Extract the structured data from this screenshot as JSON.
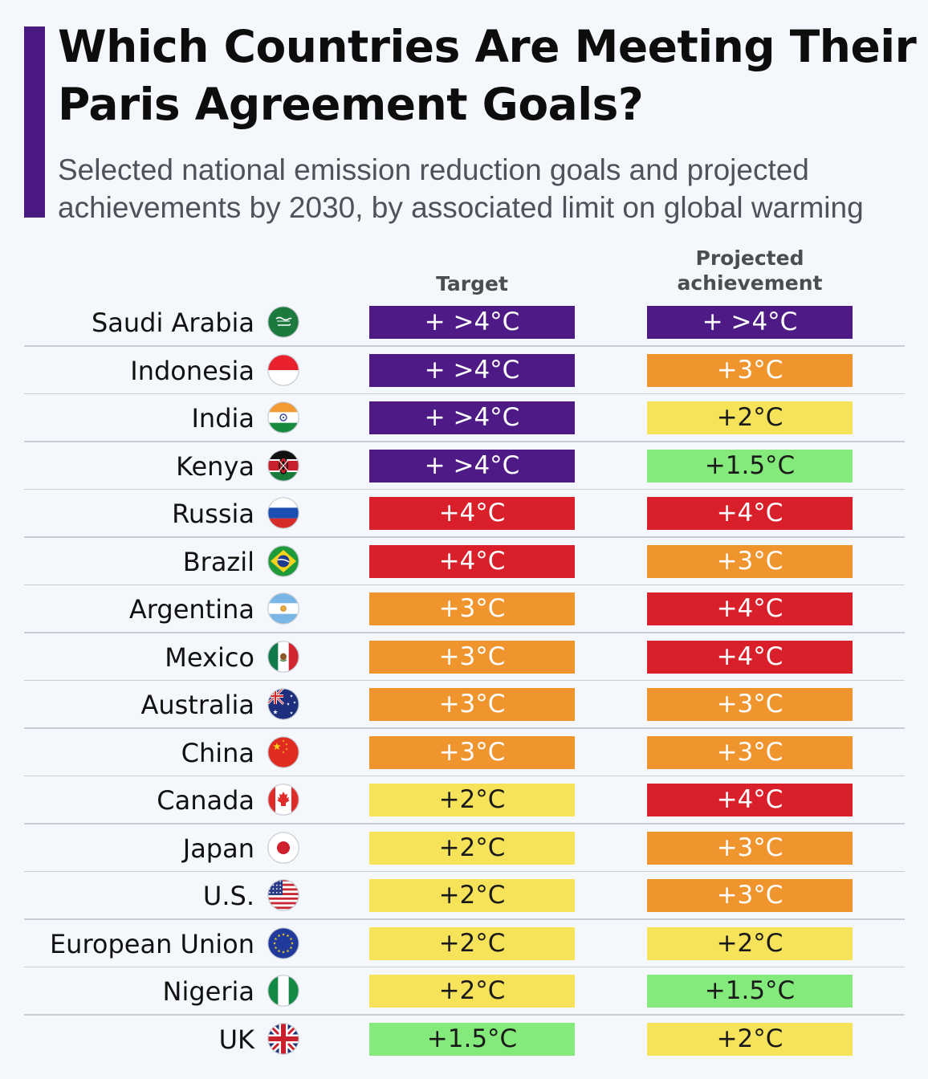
{
  "header": {
    "title": "Which Countries Are Meeting Their Paris Agreement Goals?",
    "subtitle": "Selected national emission reduction goals and projected achievements by 2030, by associated limit on global warming"
  },
  "columns": {
    "target": "Target",
    "projected": "Projected achievement"
  },
  "colors": {
    "accent": "#4a1a82",
    "scale": {
      "+ >4°C": {
        "bg": "#4e1a86",
        "fg": "#ffffff"
      },
      "+4°C": {
        "bg": "#d9202a",
        "fg": "#ffffff"
      },
      "+3°C": {
        "bg": "#f0942e",
        "fg": "#ffffff"
      },
      "+2°C": {
        "bg": "#f7e35a",
        "fg": "#1a1a1a"
      },
      "+1.5°C": {
        "bg": "#84ea7c",
        "fg": "#1a1a1a"
      }
    }
  },
  "chart_data": {
    "type": "table",
    "title": "Which Countries Are Meeting Their Paris Agreement Goals?",
    "subtitle": "Selected national emission reduction goals and projected achievements by 2030, by associated limit on global warming",
    "columns": [
      "Target",
      "Projected achievement"
    ],
    "rows": [
      {
        "country": "Saudi Arabia",
        "flag": "saudi-arabia-flag-icon",
        "target": "+ >4°C",
        "projected": "+ >4°C"
      },
      {
        "country": "Indonesia",
        "flag": "indonesia-flag-icon",
        "target": "+ >4°C",
        "projected": "+3°C"
      },
      {
        "country": "India",
        "flag": "india-flag-icon",
        "target": "+ >4°C",
        "projected": "+2°C"
      },
      {
        "country": "Kenya",
        "flag": "kenya-flag-icon",
        "target": "+ >4°C",
        "projected": "+1.5°C"
      },
      {
        "country": "Russia",
        "flag": "russia-flag-icon",
        "target": "+4°C",
        "projected": "+4°C"
      },
      {
        "country": "Brazil",
        "flag": "brazil-flag-icon",
        "target": "+4°C",
        "projected": "+3°C"
      },
      {
        "country": "Argentina",
        "flag": "argentina-flag-icon",
        "target": "+3°C",
        "projected": "+4°C"
      },
      {
        "country": "Mexico",
        "flag": "mexico-flag-icon",
        "target": "+3°C",
        "projected": "+4°C"
      },
      {
        "country": "Australia",
        "flag": "australia-flag-icon",
        "target": "+3°C",
        "projected": "+3°C"
      },
      {
        "country": "China",
        "flag": "china-flag-icon",
        "target": "+3°C",
        "projected": "+3°C"
      },
      {
        "country": "Canada",
        "flag": "canada-flag-icon",
        "target": "+2°C",
        "projected": "+4°C"
      },
      {
        "country": "Japan",
        "flag": "japan-flag-icon",
        "target": "+2°C",
        "projected": "+3°C"
      },
      {
        "country": "U.S.",
        "flag": "usa-flag-icon",
        "target": "+2°C",
        "projected": "+3°C"
      },
      {
        "country": "European Union",
        "flag": "eu-flag-icon",
        "target": "+2°C",
        "projected": "+2°C"
      },
      {
        "country": "Nigeria",
        "flag": "nigeria-flag-icon",
        "target": "+2°C",
        "projected": "+1.5°C"
      },
      {
        "country": "UK",
        "flag": "uk-flag-icon",
        "target": "+1.5°C",
        "projected": "+2°C"
      }
    ]
  }
}
